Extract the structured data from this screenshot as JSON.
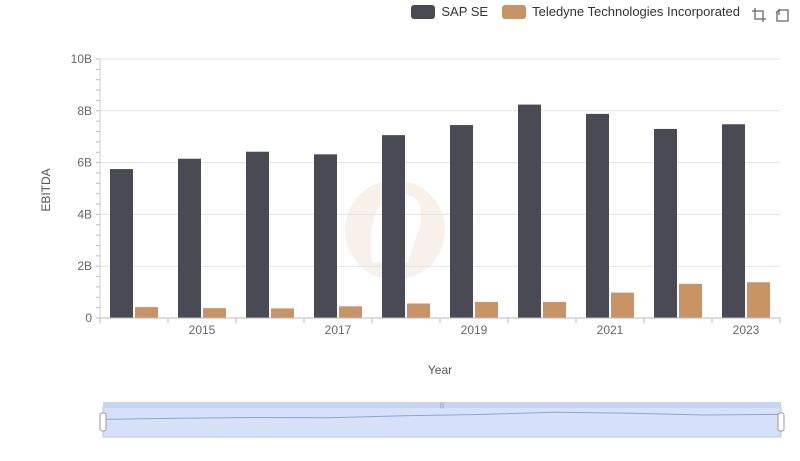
{
  "chart_data": {
    "type": "bar",
    "xlabel": "Year",
    "ylabel": "EBITDA",
    "ylim": [
      0,
      10000000000
    ],
    "yticks": [
      {
        "value": 0,
        "label": "0"
      },
      {
        "value": 2000000000,
        "label": "2B"
      },
      {
        "value": 4000000000,
        "label": "4B"
      },
      {
        "value": 6000000000,
        "label": "6B"
      },
      {
        "value": 8000000000,
        "label": "8B"
      },
      {
        "value": 10000000000,
        "label": "10B"
      }
    ],
    "categories": [
      "2014",
      "2015",
      "2016",
      "2017",
      "2018",
      "2019",
      "2020",
      "2021",
      "2022",
      "2023"
    ],
    "xtick_labels": [
      "2015",
      "2017",
      "2019",
      "2021",
      "2023"
    ],
    "series": [
      {
        "name": "SAP SE",
        "color": "#4a4a55",
        "values": [
          5750000000,
          6150000000,
          6420000000,
          6320000000,
          7060000000,
          7450000000,
          8240000000,
          7880000000,
          7300000000,
          7480000000
        ]
      },
      {
        "name": "Teledyne Technologies Incorporated",
        "color": "#c89463",
        "values": [
          420000000,
          380000000,
          370000000,
          450000000,
          560000000,
          620000000,
          620000000,
          980000000,
          1320000000,
          1380000000
        ]
      }
    ],
    "legend_position": "top-right",
    "grid": true
  },
  "toolbar": {
    "zoom_icon": "zoom-select-icon",
    "reset_icon": "zoom-reset-icon"
  }
}
